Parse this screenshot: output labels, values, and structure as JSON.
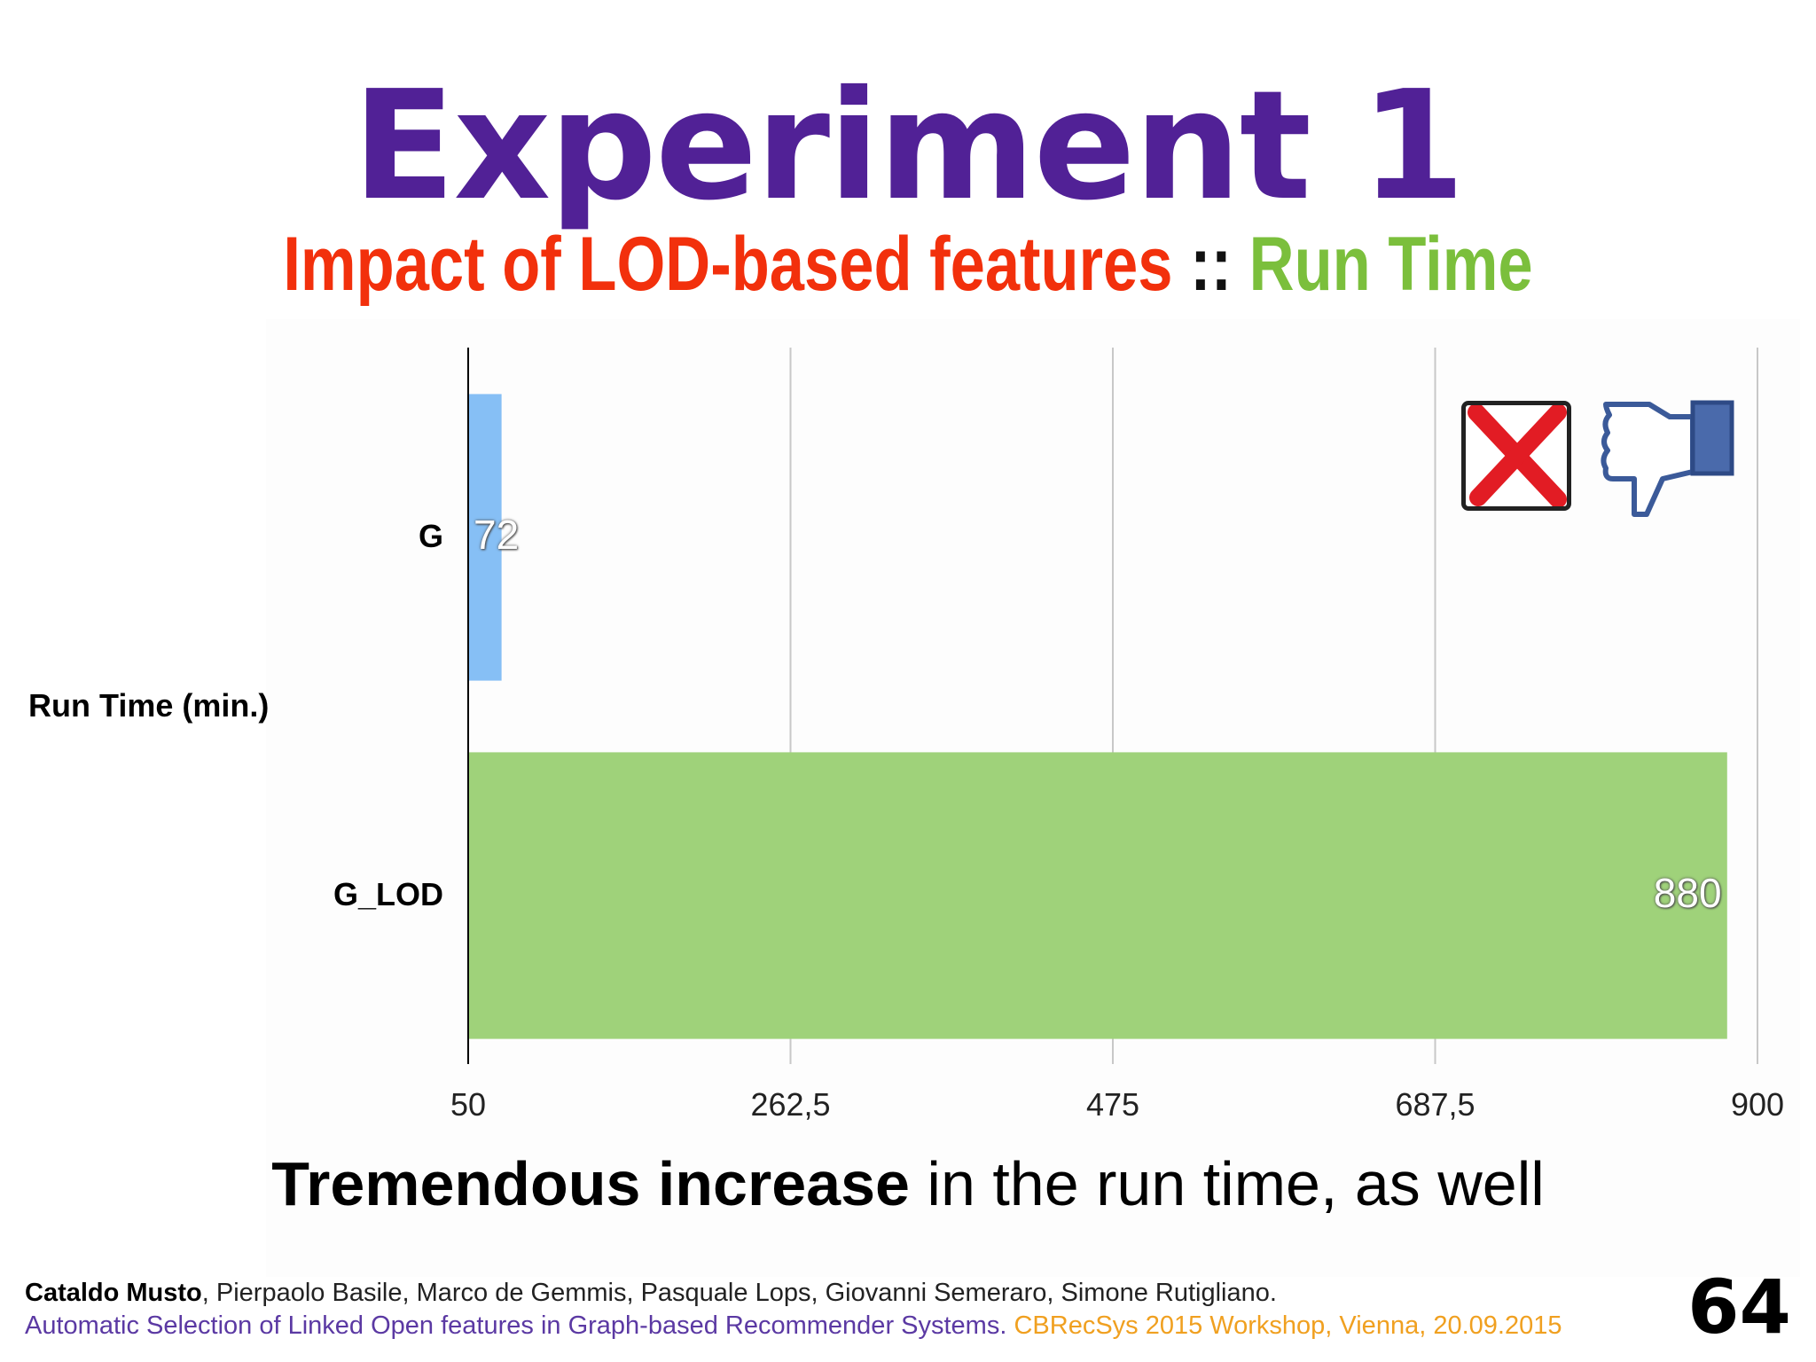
{
  "slide": {
    "title": "Experiment 1",
    "subtitle_red": "Impact of LOD-based features",
    "subtitle_sep": " :: ",
    "subtitle_green": "Run Time",
    "caption_bold": "Tremendous increase",
    "caption_rest": " in the run time, as well",
    "page_number": "64",
    "authors_first": "Cataldo Musto",
    "authors_rest": ", Pierpaolo Basile, Marco de Gemmis, Pasquale Lops, Giovanni Semeraro, Simone Rutigliano.",
    "paper_title": "Automatic Selection of Linked Open features in Graph-based Recommender Systems.",
    "venue": " CBRecSys 2015 Workshop, Vienna, 20.09.2015",
    "icons": [
      "red-x-checkbox-icon",
      "thumbs-down-icon"
    ]
  },
  "chart_data": {
    "type": "bar",
    "orientation": "horizontal",
    "ylabel": "Run Time (min.)",
    "categories": [
      "G",
      "G_LOD"
    ],
    "values": [
      72,
      880
    ],
    "data_labels": [
      "72",
      "880"
    ],
    "colors": [
      "#86bff5",
      "#9fd27a"
    ],
    "xlim": [
      50,
      900
    ],
    "ticks": [
      50,
      262.5,
      475,
      687.5,
      900
    ],
    "tick_labels": [
      "50",
      "262,5",
      "475",
      "687,5",
      "900"
    ],
    "grid": true
  }
}
